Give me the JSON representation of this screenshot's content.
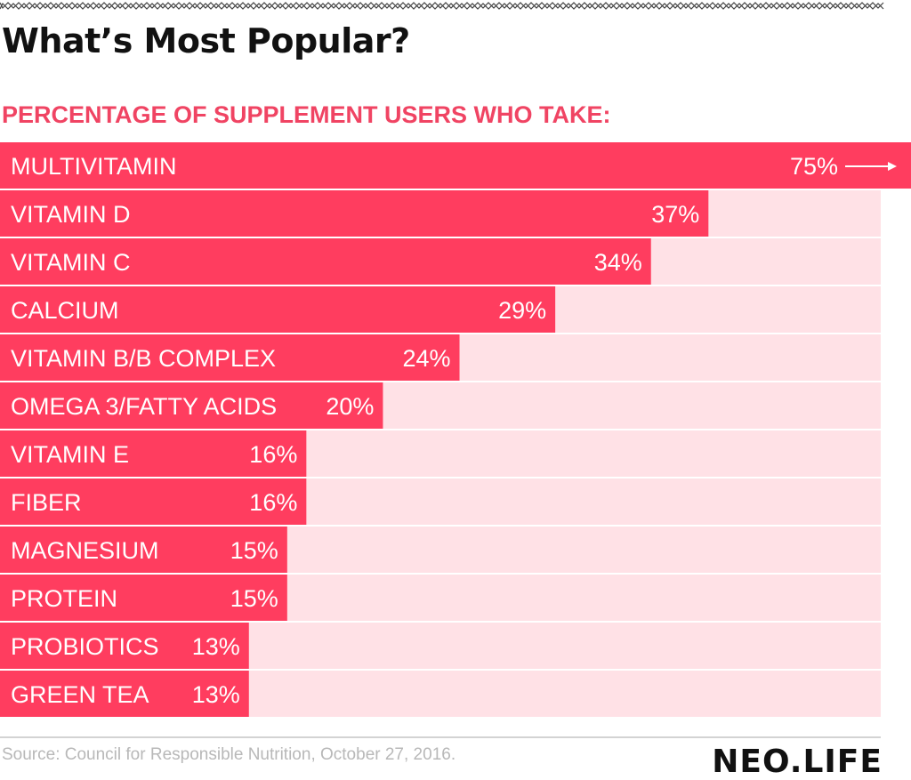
{
  "header": {
    "title": "What’s Most Popular?",
    "subtitle": "PERCENTAGE OF SUPPLEMENT USERS WHO TAKE:"
  },
  "colors": {
    "bar": "#ff3d5f",
    "track": "#ffe1e6",
    "accent_text": "#f04463",
    "label_text": "#ffffff"
  },
  "chart_data": {
    "type": "bar",
    "orientation": "horizontal",
    "categories": [
      "MULTIVITAMIN",
      "VITAMIN D",
      "VITAMIN C",
      "CALCIUM",
      "VITAMIN B/B COMPLEX",
      "OMEGA 3/FATTY ACIDS",
      "VITAMIN E",
      "FIBER",
      "MAGNESIUM",
      "PROTEIN",
      "PROBIOTICS",
      "GREEN TEA"
    ],
    "values": [
      75,
      37,
      34,
      29,
      24,
      20,
      16,
      16,
      15,
      15,
      13,
      13
    ],
    "value_labels": [
      "75%",
      "37%",
      "34%",
      "29%",
      "24%",
      "20%",
      "16%",
      "16%",
      "15%",
      "15%",
      "13%",
      "13%"
    ],
    "title": "What’s Most Popular?",
    "subtitle": "PERCENTAGE OF SUPPLEMENT USERS WHO TAKE:",
    "xlim": [
      0,
      46
    ],
    "overflow_arrow": "arrow-right-icon",
    "grid": false
  },
  "footer": {
    "source": "Source: Council for Responsible Nutrition, October 27, 2016.",
    "logo": "NEO.LIFE"
  }
}
